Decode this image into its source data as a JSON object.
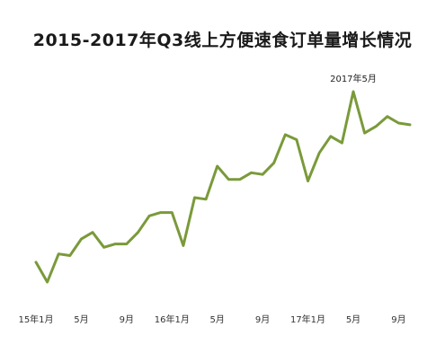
{
  "chart_data": {
    "type": "line",
    "title": "2015-2017年Q3线上方便速食订单量增长情况",
    "xlabel": "",
    "ylabel": "",
    "x_ticks": [
      "15年1月",
      "5月",
      "9月",
      "16年1月",
      "5月",
      "9月",
      "17年1月",
      "5月",
      "9月"
    ],
    "tick_months": [
      1,
      5,
      9,
      13,
      17,
      21,
      25,
      29,
      33
    ],
    "annotation": {
      "text": "2017年5月",
      "month": 29
    },
    "grid": false,
    "legend": "none",
    "line_color": "#7a9a3a",
    "x_months": [
      1,
      2,
      3,
      4,
      5,
      6,
      7,
      8,
      9,
      10,
      11,
      12,
      13,
      14,
      15,
      16,
      17,
      18,
      19,
      20,
      21,
      22,
      23,
      24,
      25,
      26,
      27,
      28,
      29,
      30,
      31,
      32,
      33,
      34
    ],
    "values": [
      22,
      10,
      27,
      26,
      36,
      40,
      31,
      33,
      33,
      40,
      50,
      52,
      52,
      32,
      61,
      60,
      80,
      72,
      72,
      76,
      75,
      82,
      99,
      96,
      71,
      88,
      98,
      94,
      125,
      100,
      104,
      110,
      106,
      105
    ]
  }
}
